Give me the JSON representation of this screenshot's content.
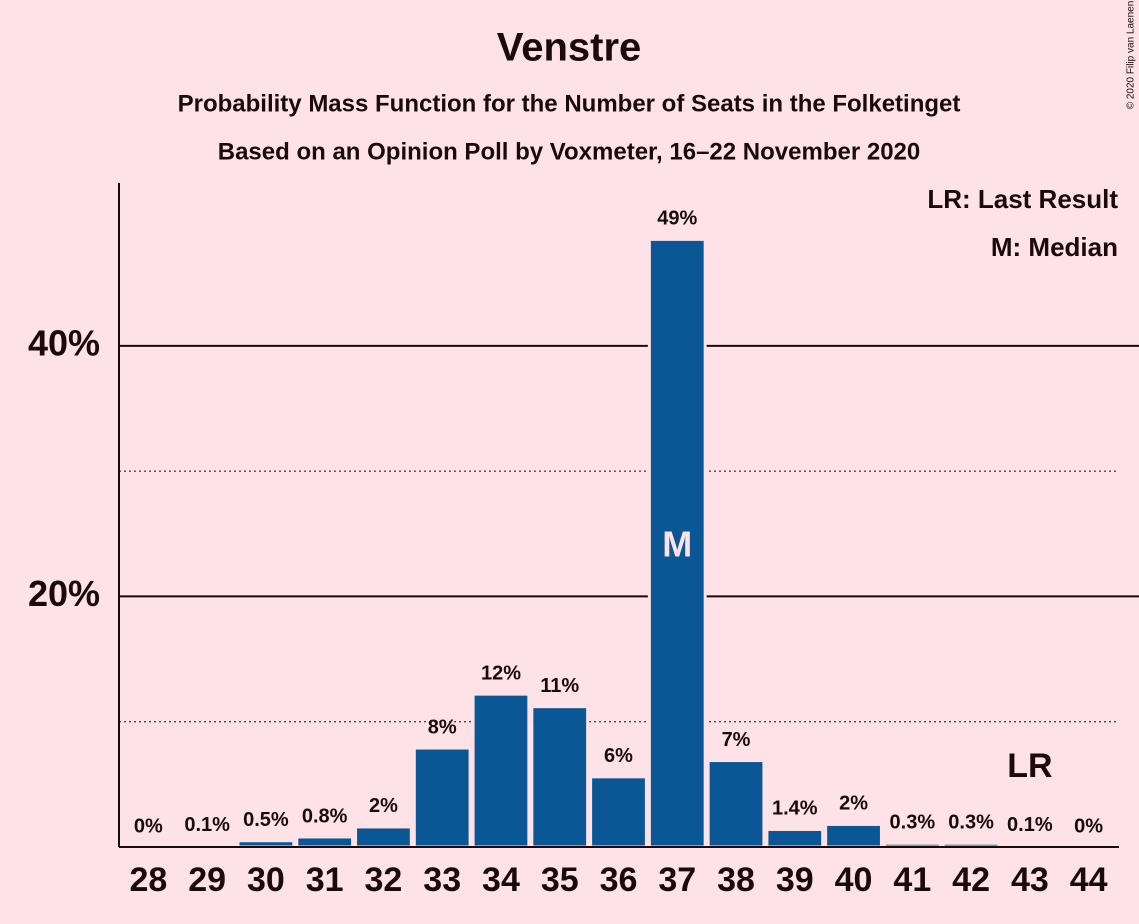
{
  "chart_data": {
    "type": "bar",
    "title": "Venstre",
    "subtitle": "Probability Mass Function for the Number of Seats in the Folketinget",
    "subtitle2": "Based on an Opinion Poll by Voxmeter, 16–22 November 2020",
    "copyright": "© 2020 Filip van Laenen",
    "categories": [
      28,
      29,
      30,
      31,
      32,
      33,
      34,
      35,
      36,
      37,
      38,
      39,
      40,
      41,
      42,
      43,
      44
    ],
    "values": [
      0,
      0.1,
      0.5,
      0.8,
      1.6,
      7.9,
      12.2,
      11.2,
      5.6,
      48.5,
      6.9,
      1.4,
      1.8,
      0.3,
      0.3,
      0.1,
      0
    ],
    "value_labels": [
      "0%",
      "0.1%",
      "0.5%",
      "0.8%",
      "2%",
      "8%",
      "12%",
      "11%",
      "6%",
      "49%",
      "7%",
      "1.4%",
      "2%",
      "0.3%",
      "0.3%",
      "0.1%",
      "0%"
    ],
    "color": "#0b5694",
    "ylim": [
      0,
      53
    ],
    "yticks": [
      {
        "value": 20,
        "label": "20%"
      },
      {
        "value": 40,
        "label": "40%"
      }
    ],
    "minor_yticks": [
      10,
      30
    ],
    "grid": true,
    "median": 37,
    "median_label": "M",
    "last_result": 43,
    "last_result_label": "LR",
    "legend": [
      "LR: Last Result",
      "M: Median"
    ],
    "legend_position": "top-right"
  }
}
